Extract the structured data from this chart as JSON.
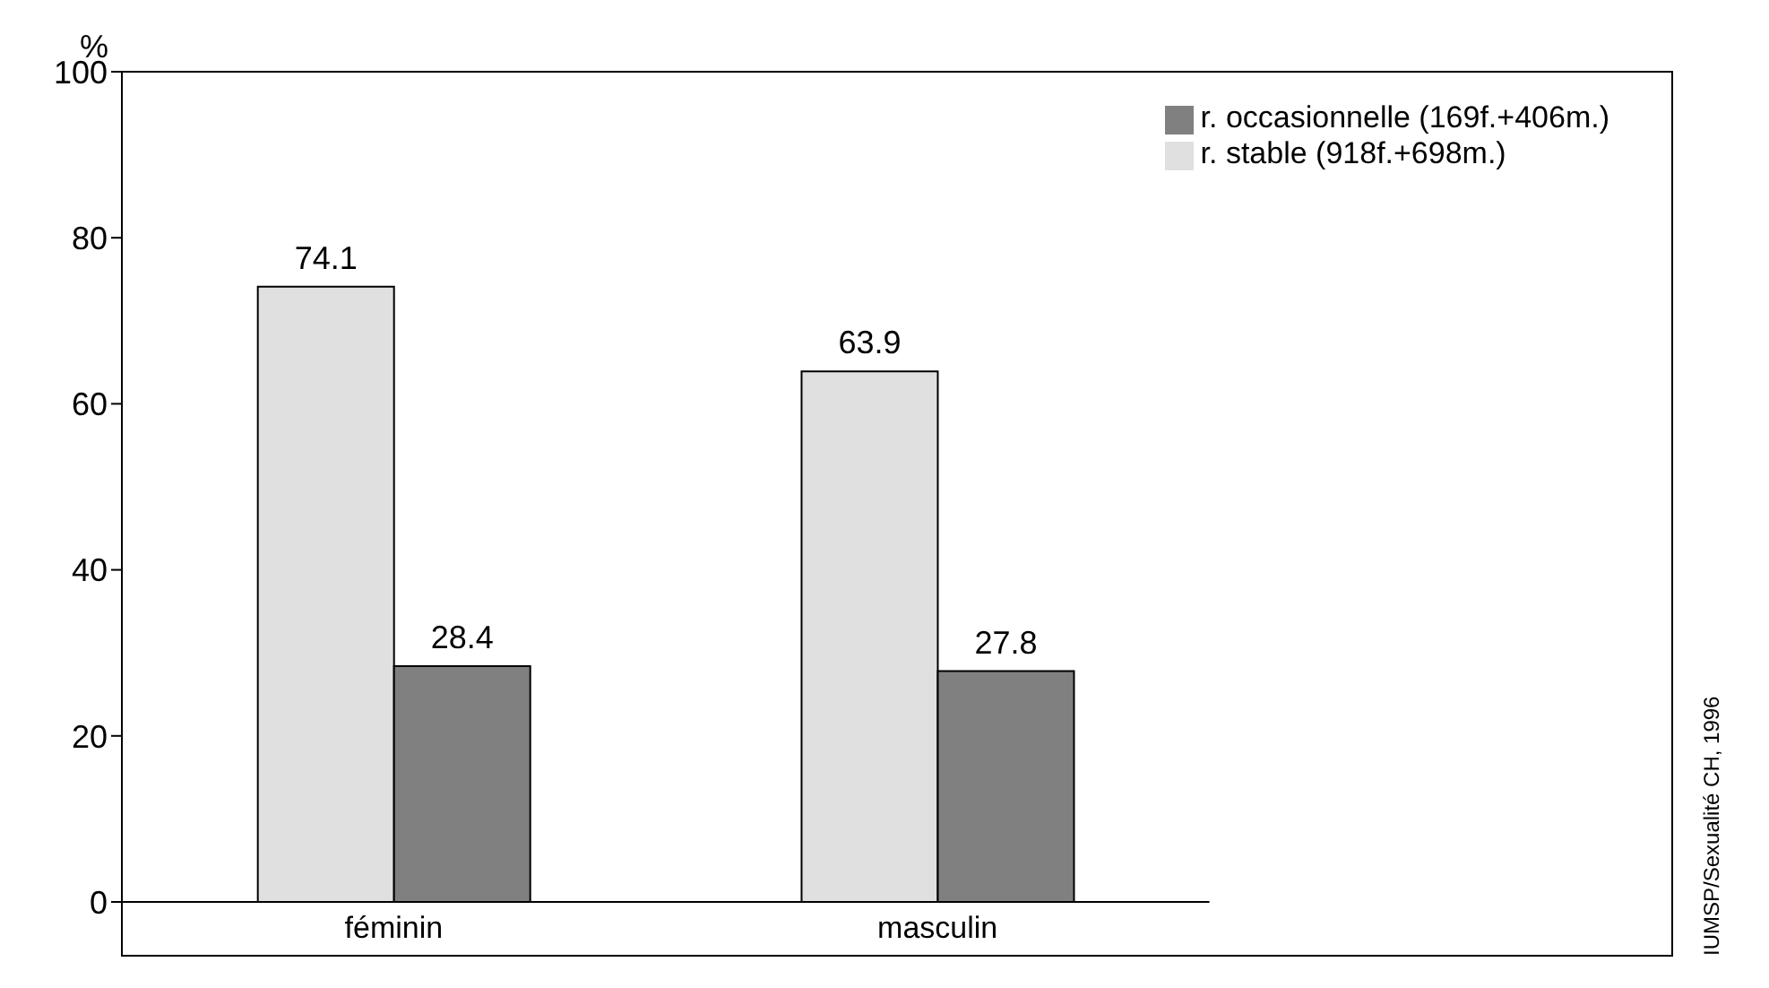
{
  "chart_data": {
    "type": "bar",
    "ylabel": "%",
    "categories": [
      "féminin",
      "masculin"
    ],
    "series": [
      {
        "name": "r. stable (918f.+698m.)",
        "color": "#e0e0e0",
        "values": [
          74.1,
          63.9
        ]
      },
      {
        "name": "r. occasionnelle (169f.+406m.)",
        "color": "#808080",
        "values": [
          28.4,
          27.8
        ]
      }
    ],
    "ylim": [
      0,
      100
    ],
    "yticks": [
      0,
      20,
      40,
      60,
      80,
      100
    ],
    "grid": false,
    "legend": "top right",
    "data_labels": true,
    "annotations": [
      "IUMSP/Sexualité CH, 1996"
    ]
  }
}
